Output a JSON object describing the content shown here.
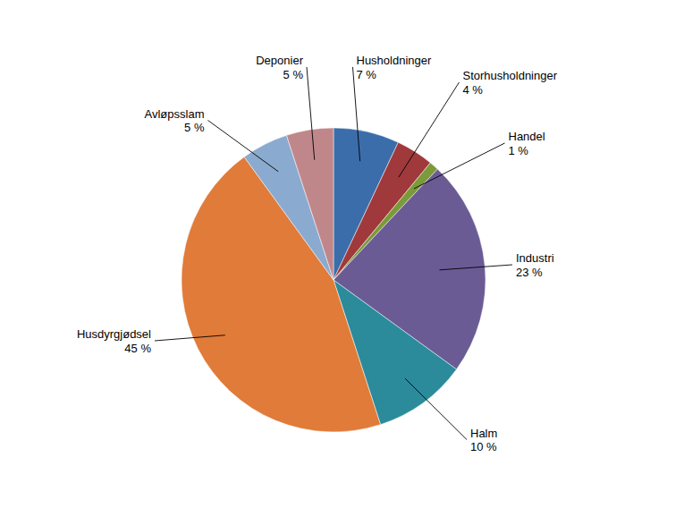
{
  "chart_data": {
    "type": "pie",
    "categories": [
      "Husholdninger",
      "Storhusholdninger",
      "Handel",
      "Industri",
      "Halm",
      "Husdyrgjødsel",
      "Avløpsslam",
      "Deponier"
    ],
    "values": [
      7,
      4,
      1,
      23,
      10,
      45,
      5,
      5
    ],
    "value_labels": [
      "7 %",
      "4 %",
      "1 %",
      "23 %",
      "10 %",
      "45 %",
      "5 %",
      "5 %"
    ],
    "colors": [
      "#3B6DAA",
      "#A0393B",
      "#7B9A3A",
      "#6B5B95",
      "#2B8B9B",
      "#E07B39",
      "#8BAACF",
      "#C0878A"
    ],
    "data_labels": true
  }
}
